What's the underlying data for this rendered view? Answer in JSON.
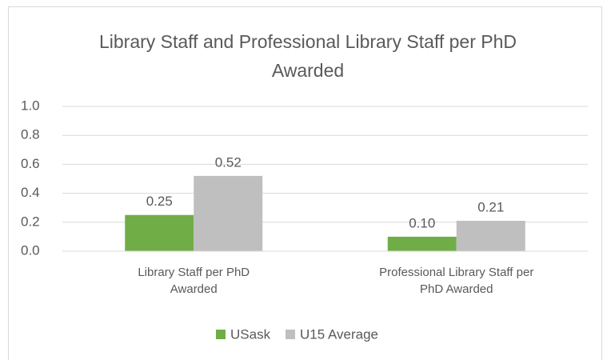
{
  "chart_data": {
    "type": "bar",
    "title": "Library Staff and Professional Library Staff per PhD Awarded",
    "categories": [
      "Library Staff per PhD Awarded",
      "Professional Library Staff per PhD Awarded"
    ],
    "series": [
      {
        "name": "USask",
        "color": "#70ad47",
        "values": [
          0.25,
          0.1
        ],
        "value_labels": [
          "0.25",
          "0.10"
        ]
      },
      {
        "name": "U15 Average",
        "color": "#bfbfbf",
        "values": [
          0.52,
          0.21
        ],
        "value_labels": [
          "0.52",
          "0.21"
        ]
      }
    ],
    "ylim": [
      0,
      1
    ],
    "yticks": [
      {
        "value": 0,
        "label": "0.0"
      },
      0.2,
      0.4,
      0.6,
      0.8,
      {
        "value": 1,
        "label": "1.0"
      }
    ],
    "grid": true,
    "legend": "bottom"
  }
}
